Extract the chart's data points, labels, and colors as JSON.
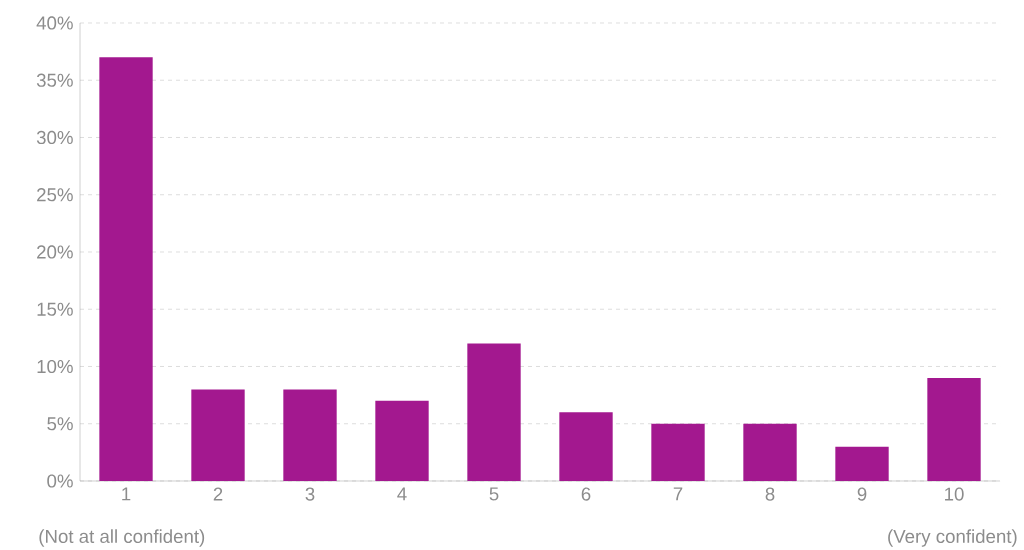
{
  "chart_data": {
    "type": "bar",
    "categories": [
      "1",
      "2",
      "3",
      "4",
      "5",
      "6",
      "7",
      "8",
      "9",
      "10"
    ],
    "values": [
      37,
      8,
      8,
      7,
      12,
      6,
      5,
      5,
      3,
      9
    ],
    "color": "#a3188f",
    "ylim": [
      0,
      40
    ],
    "yticks": [
      {
        "value": 0,
        "label": "0%"
      },
      {
        "value": 5,
        "label": "5%"
      },
      {
        "value": 10,
        "label": "10%"
      },
      {
        "value": 15,
        "label": "15%"
      },
      {
        "value": 20,
        "label": "20%"
      },
      {
        "value": 25,
        "label": "25%"
      },
      {
        "value": 30,
        "label": "30%"
      },
      {
        "value": 35,
        "label": "35%"
      },
      {
        "value": 40,
        "label": "40%"
      }
    ],
    "grid": "y",
    "annotations": [
      "(Not at all confident)",
      "(Very confident)"
    ]
  }
}
